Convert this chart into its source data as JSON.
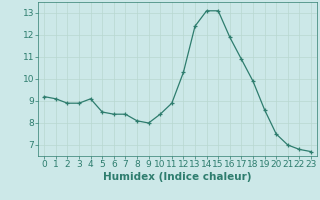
{
  "x": [
    0,
    1,
    2,
    3,
    4,
    5,
    6,
    7,
    8,
    9,
    10,
    11,
    12,
    13,
    14,
    15,
    16,
    17,
    18,
    19,
    20,
    21,
    22,
    23
  ],
  "y": [
    9.2,
    9.1,
    8.9,
    8.9,
    9.1,
    8.5,
    8.4,
    8.4,
    8.1,
    8.0,
    8.4,
    8.9,
    10.3,
    12.4,
    13.1,
    13.1,
    11.9,
    10.9,
    9.9,
    8.6,
    7.5,
    7.0,
    6.8,
    6.7
  ],
  "line_color": "#2e7d6e",
  "marker": "+",
  "marker_size": 3.5,
  "bg_color": "#cce8e8",
  "grid_color": "#b8d8d0",
  "xlabel": "Humidex (Indice chaleur)",
  "ylim": [
    6.5,
    13.5
  ],
  "xlim": [
    -0.5,
    23.5
  ],
  "yticks": [
    7,
    8,
    9,
    10,
    11,
    12,
    13
  ],
  "xticks": [
    0,
    1,
    2,
    3,
    4,
    5,
    6,
    7,
    8,
    9,
    10,
    11,
    12,
    13,
    14,
    15,
    16,
    17,
    18,
    19,
    20,
    21,
    22,
    23
  ],
  "tick_color": "#2e7d6e",
  "label_fontsize": 6.5,
  "xlabel_fontsize": 7.5,
  "axis_color": "#2e7d6e",
  "linewidth": 0.9,
  "markeredgewidth": 0.9
}
